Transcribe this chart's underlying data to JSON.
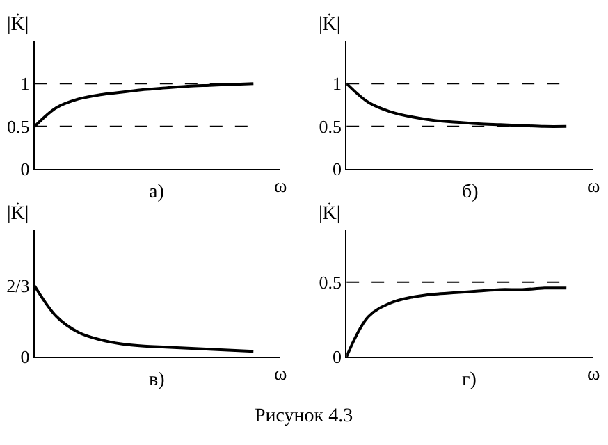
{
  "chart_data": [
    {
      "type": "line",
      "ylabel": "|K̇|",
      "xlabel": "ω",
      "annotations": [
        "а)"
      ],
      "categories": [
        null,
        null,
        null,
        null,
        null,
        null,
        null,
        null,
        null,
        null,
        null
      ],
      "values": [
        0.5,
        0.72,
        0.82,
        0.87,
        0.9,
        0.93,
        0.95,
        0.97,
        0.98,
        0.99,
        1.0
      ],
      "color": "#000000",
      "ylim": [
        0,
        1.5
      ],
      "yticks": [
        0,
        0.5,
        1
      ],
      "ref_lines": [
        {
          "axis": "y",
          "value": 1,
          "line_style": "dashed"
        },
        {
          "axis": "y",
          "value": 0.5,
          "line_style": "dashed"
        }
      ]
    },
    {
      "type": "line",
      "ylabel": "|K̇|",
      "xlabel": "ω",
      "annotations": [
        "б)"
      ],
      "categories": [
        null,
        null,
        null,
        null,
        null,
        null,
        null,
        null,
        null,
        null,
        null
      ],
      "values": [
        1.0,
        0.78,
        0.67,
        0.61,
        0.57,
        0.55,
        0.53,
        0.52,
        0.51,
        0.5,
        0.5
      ],
      "color": "#000000",
      "ylim": [
        0,
        1.5
      ],
      "yticks": [
        0,
        0.5,
        1
      ],
      "ref_lines": [
        {
          "axis": "y",
          "value": 1,
          "line_style": "dashed"
        },
        {
          "axis": "y",
          "value": 0.5,
          "line_style": "dashed"
        }
      ]
    },
    {
      "type": "line",
      "ylabel": "|K̇|",
      "xlabel": "ω",
      "annotations": [
        "в)"
      ],
      "categories": [
        null,
        null,
        null,
        null,
        null,
        null,
        null,
        null,
        null,
        null,
        null
      ],
      "values": [
        0.67,
        0.38,
        0.23,
        0.16,
        0.12,
        0.1,
        0.09,
        0.08,
        0.07,
        0.06,
        0.05
      ],
      "color": "#000000",
      "ylim": [
        0,
        1.2
      ],
      "yticks": [
        0,
        {
          "value": 0.67,
          "label": "2/3"
        }
      ]
    },
    {
      "type": "line",
      "ylabel": "|K̇|",
      "xlabel": "ω",
      "annotations": [
        "г)",
        "Рисунок 4.3"
      ],
      "categories": [
        null,
        null,
        null,
        null,
        null,
        null,
        null,
        null,
        null,
        null,
        null
      ],
      "values": [
        0,
        0.27,
        0.36,
        0.4,
        0.42,
        0.43,
        0.44,
        0.45,
        0.45,
        0.46,
        0.46
      ],
      "color": "#000000",
      "ylim": [
        0,
        0.85
      ],
      "yticks": [
        0,
        0.5
      ],
      "ref_lines": [
        {
          "axis": "y",
          "value": 0.5,
          "line_style": "dashed"
        }
      ]
    }
  ]
}
